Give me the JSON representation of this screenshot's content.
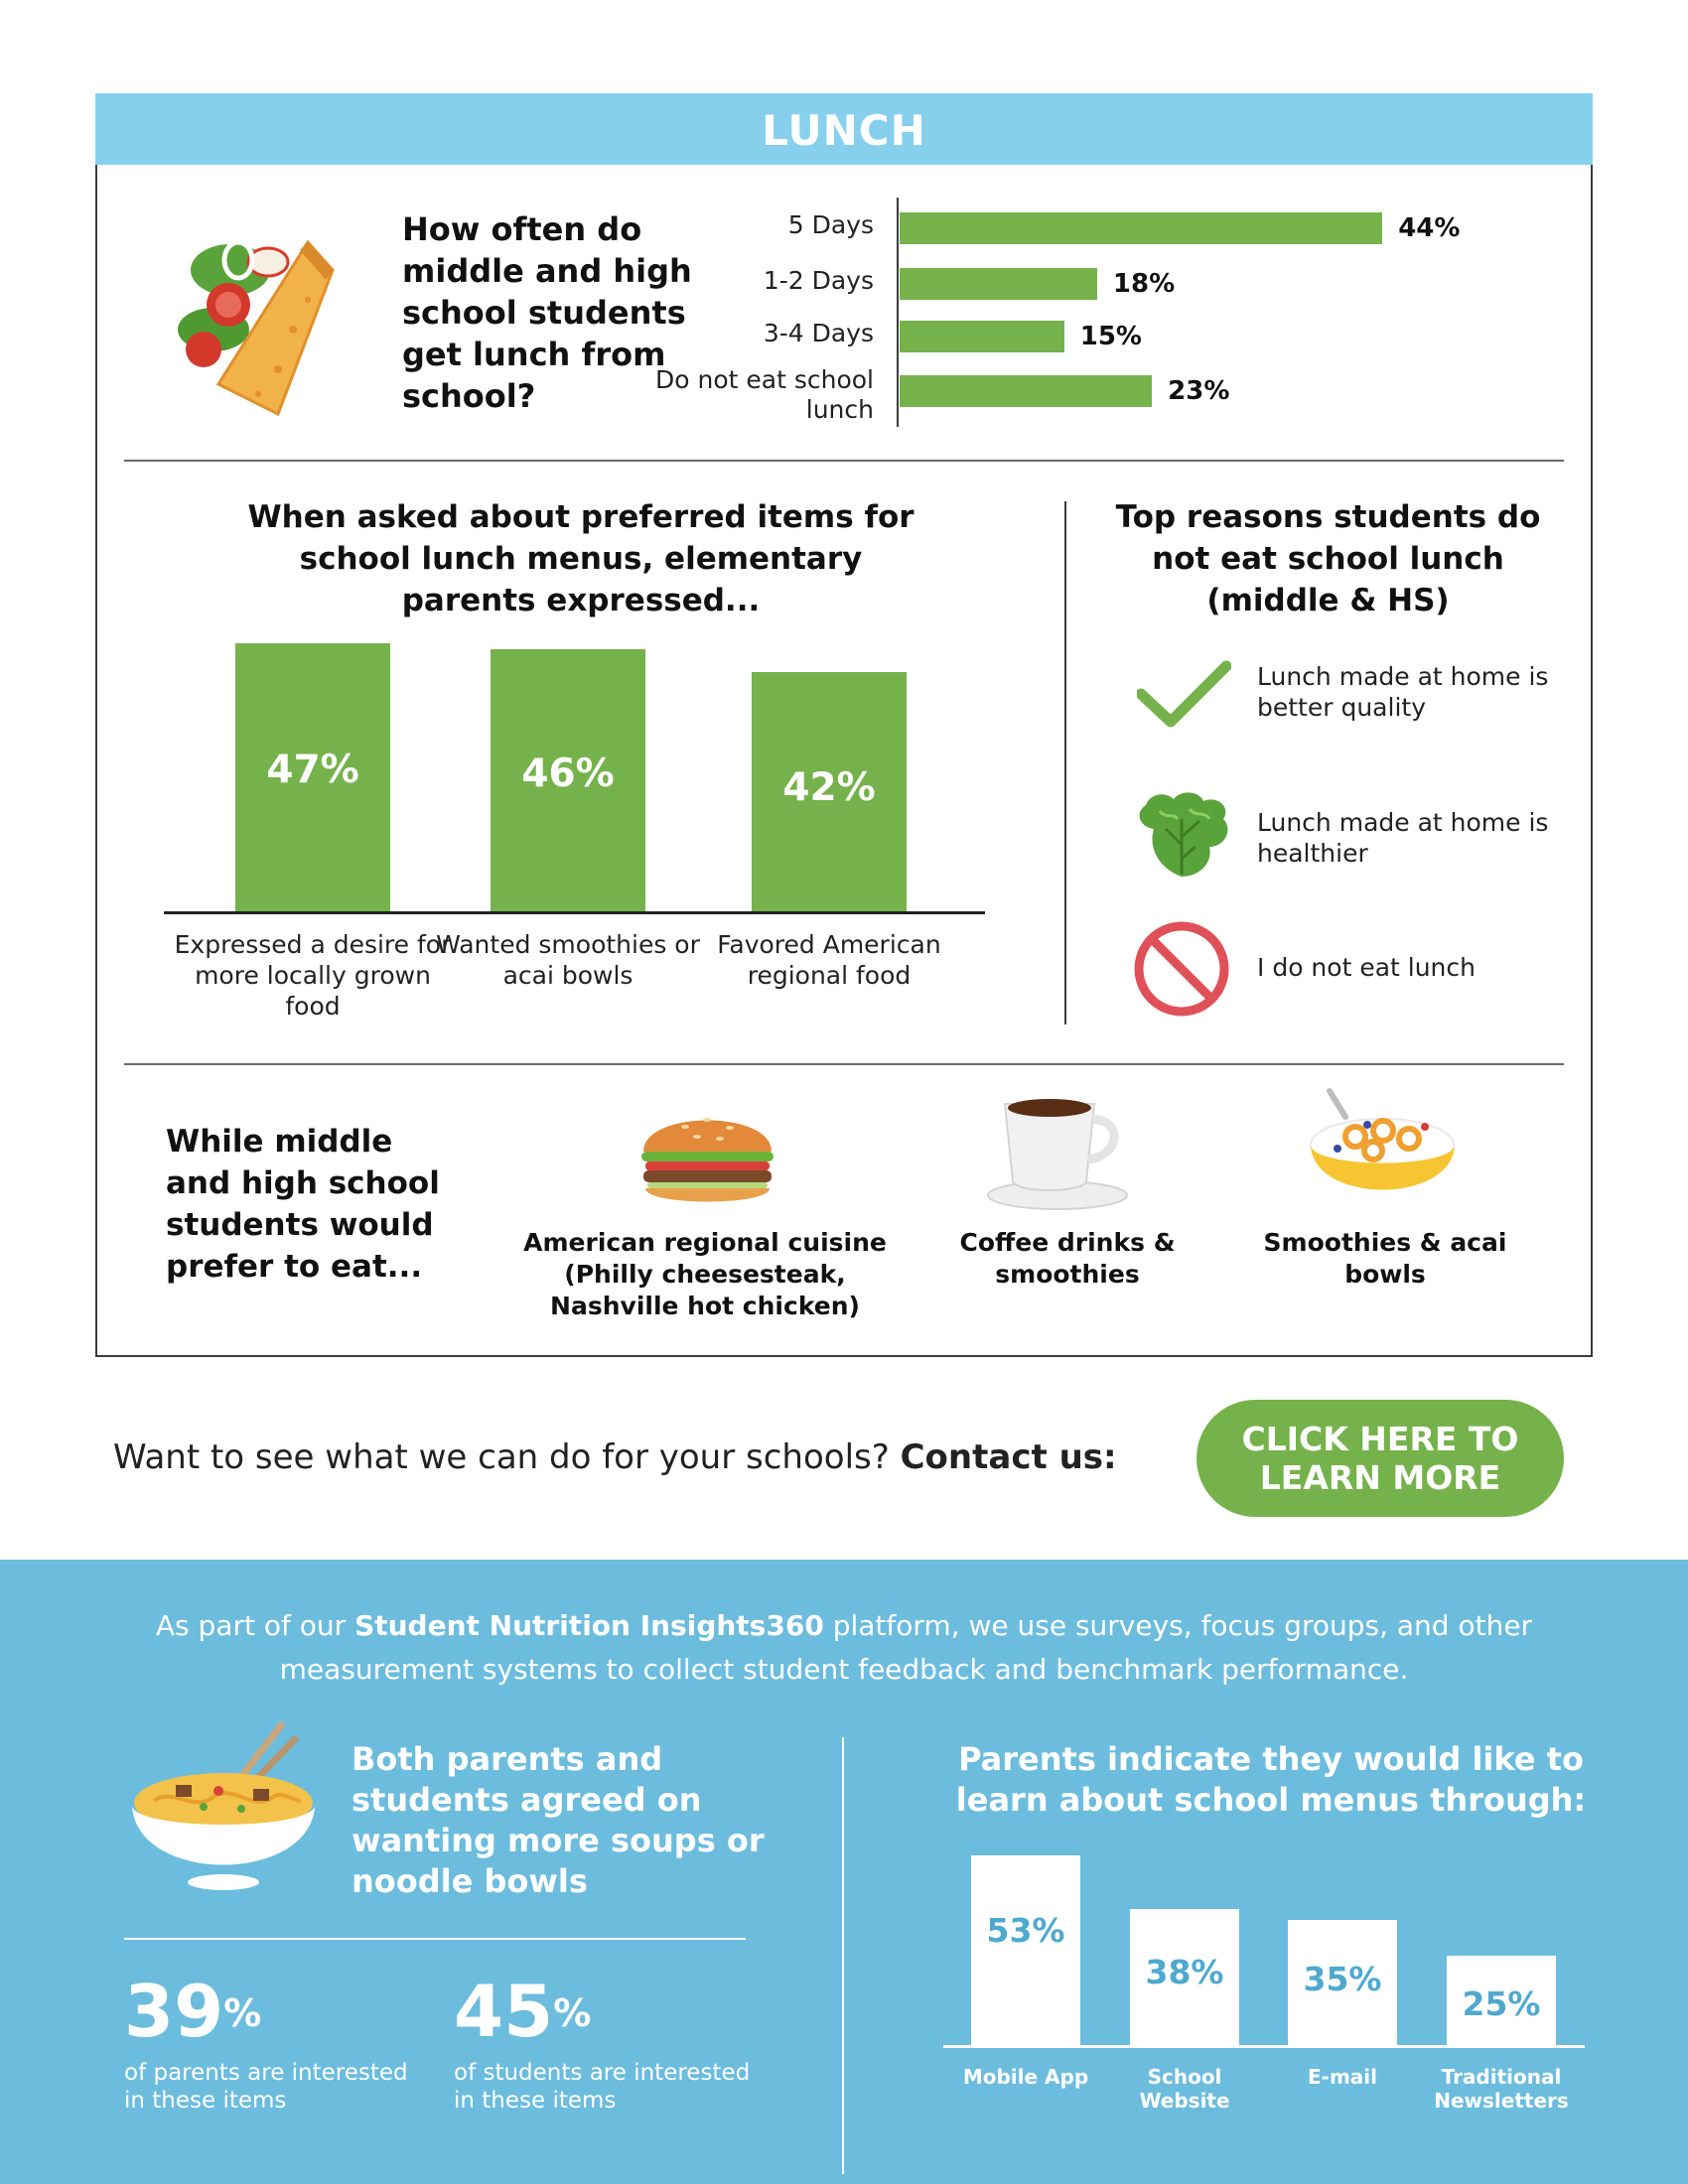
{
  "lunch": {
    "header": "LUNCH",
    "frequency": {
      "question": "How often do middle and high school students get lunch from school?",
      "chart_data": {
        "type": "bar",
        "orientation": "horizontal",
        "categories": [
          "5 Days",
          "1-2 Days",
          "3-4 Days",
          "Do not eat school lunch"
        ],
        "values": [
          44,
          18,
          15,
          23
        ],
        "value_labels": [
          "44%",
          "18%",
          "15%",
          "23%"
        ],
        "unit": "%",
        "grid": false
      }
    },
    "preferred": {
      "title": "When asked about preferred items for school lunch menus, elementary parents expressed...",
      "chart_data": {
        "type": "bar",
        "categories": [
          "Expressed a desire for more locally grown food",
          "Wanted smoothies or acai bowls",
          "Favored American regional food"
        ],
        "values": [
          47,
          46,
          42
        ],
        "value_labels": [
          "47%",
          "46%",
          "42%"
        ],
        "unit": "%",
        "grid": false
      }
    },
    "reasons": {
      "title": "Top reasons students do not eat school lunch (middle & HS)",
      "items": [
        {
          "icon": "checkmark-icon",
          "text": "Lunch made at home is better quality"
        },
        {
          "icon": "lettuce-icon",
          "text": "Lunch made at home is healthier"
        },
        {
          "icon": "prohibited-icon",
          "text": "I do not eat lunch"
        }
      ]
    },
    "prefer_to_eat": {
      "title": "While middle and high school students would prefer to eat...",
      "items": [
        {
          "icon": "burger-icon",
          "caption": "American regional cuisine (Philly cheesesteak, Nashville hot chicken)"
        },
        {
          "icon": "coffee-cup-icon",
          "caption": "Coffee drinks & smoothies"
        },
        {
          "icon": "cereal-bowl-icon",
          "caption": "Smoothies & acai bowls"
        }
      ]
    }
  },
  "cta": {
    "text": "Want to see what we can do for your schools?",
    "bold": "Contact us:",
    "button_line1": "CLICK HERE TO",
    "button_line2": "LEARN MORE",
    "button_color": "#76b24b"
  },
  "footer": {
    "intro_pre": "As part of our",
    "intro_bold": "Student Nutrition Insights360",
    "intro_post": "platform, we use surveys, focus groups, and other measurement systems to collect student feedback and benchmark performance.",
    "soups": {
      "title": "Both parents and students agreed on wanting more soups or noodle bowls",
      "stats": [
        {
          "value": "39",
          "suffix": "%",
          "label": "of parents are interested in these items"
        },
        {
          "value": "45",
          "suffix": "%",
          "label": "of students are interested in these items"
        }
      ]
    },
    "channels": {
      "title": "Parents indicate they would like to learn about school menus through:",
      "chart_data": {
        "type": "bar",
        "categories": [
          "Mobile App",
          "School Website",
          "E-mail",
          "Traditional Newsletters"
        ],
        "values": [
          53,
          38,
          35,
          25
        ],
        "value_labels": [
          "53%",
          "38%",
          "35%",
          "25%"
        ],
        "unit": "%",
        "grid": false
      }
    }
  },
  "colors": {
    "header_blue": "#86d0ee",
    "footer_blue": "#6cbcde",
    "bar_green": "#76b24b",
    "value_blue": "#4fa9cf"
  }
}
